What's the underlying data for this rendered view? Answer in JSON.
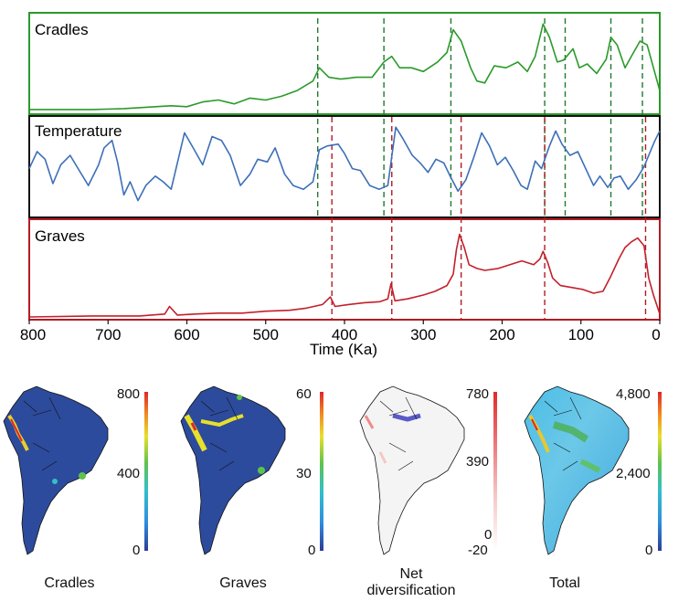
{
  "chart_data": {
    "type": "line",
    "xlabel": "Time (Ka)",
    "xlim": [
      800,
      0
    ],
    "x_ticks": [
      "800",
      "700",
      "600",
      "500",
      "400",
      "300",
      "200",
      "100",
      "0"
    ],
    "tick_values": [
      800,
      700,
      600,
      500,
      400,
      300,
      200,
      100,
      0
    ],
    "panels": [
      {
        "name": "Cradles",
        "color": "#2a9a2a",
        "frame_color": "#2a9a2a"
      },
      {
        "name": "Temperature",
        "color": "#3d6fb8",
        "frame_color": "#111111"
      },
      {
        "name": "Graves",
        "color": "#c3202a",
        "frame_color": "#b01c24"
      }
    ],
    "series": [
      {
        "name": "Cradles",
        "points": [
          [
            800,
            0.02
          ],
          [
            720,
            0.02
          ],
          [
            680,
            0.03
          ],
          [
            640,
            0.05
          ],
          [
            620,
            0.06
          ],
          [
            600,
            0.05
          ],
          [
            580,
            0.1
          ],
          [
            560,
            0.12
          ],
          [
            540,
            0.08
          ],
          [
            520,
            0.14
          ],
          [
            500,
            0.12
          ],
          [
            480,
            0.16
          ],
          [
            460,
            0.22
          ],
          [
            440,
            0.32
          ],
          [
            432,
            0.46
          ],
          [
            420,
            0.36
          ],
          [
            405,
            0.34
          ],
          [
            385,
            0.36
          ],
          [
            365,
            0.36
          ],
          [
            350,
            0.52
          ],
          [
            340,
            0.58
          ],
          [
            330,
            0.46
          ],
          [
            315,
            0.46
          ],
          [
            300,
            0.42
          ],
          [
            282,
            0.52
          ],
          [
            270,
            0.62
          ],
          [
            262,
            0.86
          ],
          [
            252,
            0.74
          ],
          [
            240,
            0.46
          ],
          [
            232,
            0.32
          ],
          [
            222,
            0.3
          ],
          [
            210,
            0.48
          ],
          [
            195,
            0.46
          ],
          [
            180,
            0.52
          ],
          [
            168,
            0.42
          ],
          [
            158,
            0.58
          ],
          [
            148,
            0.92
          ],
          [
            140,
            0.78
          ],
          [
            130,
            0.52
          ],
          [
            122,
            0.54
          ],
          [
            110,
            0.66
          ],
          [
            102,
            0.46
          ],
          [
            92,
            0.5
          ],
          [
            80,
            0.4
          ],
          [
            68,
            0.55
          ],
          [
            62,
            0.78
          ],
          [
            54,
            0.7
          ],
          [
            44,
            0.46
          ],
          [
            36,
            0.58
          ],
          [
            25,
            0.74
          ],
          [
            16,
            0.7
          ],
          [
            8,
            0.46
          ],
          [
            0,
            0.22
          ]
        ],
        "vlines": [
          434,
          350,
          265,
          146,
          120,
          62,
          22
        ]
      },
      {
        "name": "Temperature",
        "points": [
          [
            800,
            0.48
          ],
          [
            790,
            0.66
          ],
          [
            780,
            0.58
          ],
          [
            770,
            0.32
          ],
          [
            760,
            0.52
          ],
          [
            748,
            0.62
          ],
          [
            738,
            0.48
          ],
          [
            725,
            0.3
          ],
          [
            712,
            0.52
          ],
          [
            705,
            0.7
          ],
          [
            695,
            0.78
          ],
          [
            688,
            0.55
          ],
          [
            680,
            0.2
          ],
          [
            672,
            0.34
          ],
          [
            662,
            0.14
          ],
          [
            652,
            0.3
          ],
          [
            640,
            0.4
          ],
          [
            630,
            0.34
          ],
          [
            620,
            0.26
          ],
          [
            612,
            0.54
          ],
          [
            603,
            0.86
          ],
          [
            592,
            0.7
          ],
          [
            580,
            0.52
          ],
          [
            568,
            0.82
          ],
          [
            556,
            0.78
          ],
          [
            545,
            0.62
          ],
          [
            532,
            0.3
          ],
          [
            520,
            0.42
          ],
          [
            510,
            0.58
          ],
          [
            498,
            0.55
          ],
          [
            488,
            0.7
          ],
          [
            476,
            0.42
          ],
          [
            465,
            0.3
          ],
          [
            452,
            0.26
          ],
          [
            440,
            0.34
          ],
          [
            432,
            0.68
          ],
          [
            422,
            0.72
          ],
          [
            408,
            0.74
          ],
          [
            400,
            0.64
          ],
          [
            390,
            0.48
          ],
          [
            380,
            0.46
          ],
          [
            368,
            0.3
          ],
          [
            356,
            0.26
          ],
          [
            345,
            0.3
          ],
          [
            335,
            0.92
          ],
          [
            326,
            0.8
          ],
          [
            314,
            0.62
          ],
          [
            304,
            0.54
          ],
          [
            294,
            0.44
          ],
          [
            284,
            0.58
          ],
          [
            274,
            0.54
          ],
          [
            266,
            0.4
          ],
          [
            256,
            0.24
          ],
          [
            246,
            0.36
          ],
          [
            236,
            0.6
          ],
          [
            226,
            0.86
          ],
          [
            216,
            0.72
          ],
          [
            206,
            0.52
          ],
          [
            196,
            0.6
          ],
          [
            186,
            0.46
          ],
          [
            176,
            0.3
          ],
          [
            168,
            0.26
          ],
          [
            158,
            0.56
          ],
          [
            150,
            0.48
          ],
          [
            140,
            0.72
          ],
          [
            132,
            0.88
          ],
          [
            124,
            0.74
          ],
          [
            114,
            0.62
          ],
          [
            104,
            0.66
          ],
          [
            94,
            0.48
          ],
          [
            84,
            0.3
          ],
          [
            76,
            0.4
          ],
          [
            66,
            0.28
          ],
          [
            58,
            0.38
          ],
          [
            50,
            0.4
          ],
          [
            40,
            0.26
          ],
          [
            30,
            0.36
          ],
          [
            20,
            0.5
          ],
          [
            12,
            0.66
          ],
          [
            6,
            0.78
          ],
          [
            0,
            0.88
          ]
        ],
        "vlines": [
          434,
          350,
          265,
          146,
          120,
          62,
          22,
          416,
          340,
          252,
          146,
          18
        ]
      },
      {
        "name": "Graves",
        "points": [
          [
            800,
            0.01
          ],
          [
            720,
            0.02
          ],
          [
            660,
            0.02
          ],
          [
            628,
            0.04
          ],
          [
            622,
            0.12
          ],
          [
            612,
            0.03
          ],
          [
            590,
            0.04
          ],
          [
            560,
            0.05
          ],
          [
            530,
            0.05
          ],
          [
            500,
            0.07
          ],
          [
            470,
            0.08
          ],
          [
            450,
            0.1
          ],
          [
            428,
            0.14
          ],
          [
            418,
            0.22
          ],
          [
            412,
            0.12
          ],
          [
            395,
            0.14
          ],
          [
            375,
            0.16
          ],
          [
            355,
            0.17
          ],
          [
            345,
            0.2
          ],
          [
            341,
            0.36
          ],
          [
            336,
            0.18
          ],
          [
            320,
            0.2
          ],
          [
            300,
            0.24
          ],
          [
            285,
            0.28
          ],
          [
            270,
            0.34
          ],
          [
            262,
            0.46
          ],
          [
            258,
            0.72
          ],
          [
            254,
            0.88
          ],
          [
            248,
            0.74
          ],
          [
            242,
            0.56
          ],
          [
            232,
            0.52
          ],
          [
            222,
            0.5
          ],
          [
            205,
            0.52
          ],
          [
            190,
            0.56
          ],
          [
            175,
            0.6
          ],
          [
            160,
            0.56
          ],
          [
            152,
            0.62
          ],
          [
            148,
            0.7
          ],
          [
            142,
            0.58
          ],
          [
            136,
            0.42
          ],
          [
            126,
            0.34
          ],
          [
            112,
            0.32
          ],
          [
            98,
            0.3
          ],
          [
            84,
            0.26
          ],
          [
            72,
            0.28
          ],
          [
            62,
            0.44
          ],
          [
            52,
            0.62
          ],
          [
            44,
            0.74
          ],
          [
            36,
            0.8
          ],
          [
            28,
            0.84
          ],
          [
            20,
            0.76
          ],
          [
            14,
            0.42
          ],
          [
            8,
            0.24
          ],
          [
            0,
            0.04
          ]
        ],
        "vlines": [
          416,
          340,
          252,
          146,
          18
        ]
      }
    ],
    "maps": [
      {
        "name": "Cradles",
        "colorbar_ticks": [
          "800",
          "400",
          "0"
        ],
        "colorbar_max": 800,
        "theme": "dark"
      },
      {
        "name": "Graves",
        "colorbar_ticks": [
          "60",
          "30",
          "0"
        ],
        "colorbar_max": 60,
        "theme": "dark"
      },
      {
        "name": "Net diversification",
        "colorbar_ticks": [
          "780",
          "390",
          "0",
          "-20"
        ],
        "colorbar_max": 780,
        "theme": "light"
      },
      {
        "name": "Total",
        "colorbar_ticks": [
          "4,800",
          "2,400",
          "0"
        ],
        "colorbar_max": 4800,
        "theme": "bright"
      }
    ]
  },
  "colors": {
    "cradle_line": "#2a9a2a",
    "temperature_line": "#3d6fb8",
    "grave_line": "#c3202a",
    "cradle_dash": "#1f7a2e",
    "grave_dash": "#b01c24",
    "map_ocean_blue": "#2d4b9c",
    "map_total_blue": "#55c4ea"
  },
  "captions": {
    "cradles": "Cradles",
    "graves": "Graves",
    "net_line1": "Net",
    "net_line2": "diversification",
    "total": "Total"
  },
  "panel_titles": {
    "cradles": "Cradles",
    "temperature": "Temperature",
    "graves": "Graves"
  },
  "axis": {
    "xlabel": "Time (Ka)"
  }
}
